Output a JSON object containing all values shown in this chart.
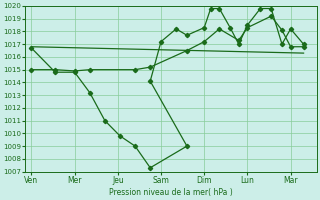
{
  "background_color": "#cceee8",
  "grid_color": "#88cc99",
  "line_color": "#1a6b1a",
  "xlabel": "Pression niveau de la mer( hPa )",
  "ylim": [
    1007,
    1020
  ],
  "yticks": [
    1007,
    1008,
    1009,
    1010,
    1011,
    1012,
    1013,
    1014,
    1015,
    1016,
    1017,
    1018,
    1019,
    1020
  ],
  "xtick_labels": [
    "Ven",
    "Mer",
    "Jeu",
    "Sam",
    "Dim",
    "Lun",
    "Mar"
  ],
  "x_positions": [
    0,
    1,
    2,
    3,
    4,
    5,
    6
  ],
  "xlim": [
    -0.15,
    6.6
  ],
  "line_deep_x": [
    0.0,
    0.55,
    1.0,
    1.35,
    1.7,
    2.05,
    2.4,
    2.75,
    3.6
  ],
  "line_deep_y": [
    1016.7,
    1014.8,
    1014.8,
    1013.2,
    1011.0,
    1009.8,
    1009.0,
    1007.3,
    1009.0
  ],
  "line_upper_x": [
    2.75,
    3.0,
    3.35,
    3.6,
    4.0,
    4.15,
    4.35,
    4.6,
    4.8,
    5.0,
    5.3,
    5.55,
    5.8,
    6.0,
    6.3
  ],
  "line_upper_y": [
    1014.1,
    1017.2,
    1018.2,
    1017.7,
    1018.3,
    1019.8,
    1019.8,
    1018.3,
    1017.0,
    1018.5,
    1019.8,
    1019.8,
    1017.0,
    1018.2,
    1017.0
  ],
  "line_mid_x": [
    0.0,
    0.55,
    1.0,
    1.35,
    2.4,
    2.75,
    3.6,
    4.0,
    4.35,
    4.8,
    5.0,
    5.55,
    5.8,
    6.0,
    6.3
  ],
  "line_mid_y": [
    1015.0,
    1015.0,
    1014.9,
    1015.0,
    1015.0,
    1015.2,
    1016.5,
    1017.2,
    1018.2,
    1017.3,
    1018.3,
    1019.2,
    1018.1,
    1016.8,
    1016.8
  ],
  "trend_x": [
    0.0,
    6.3
  ],
  "trend_y": [
    1016.8,
    1016.3
  ]
}
